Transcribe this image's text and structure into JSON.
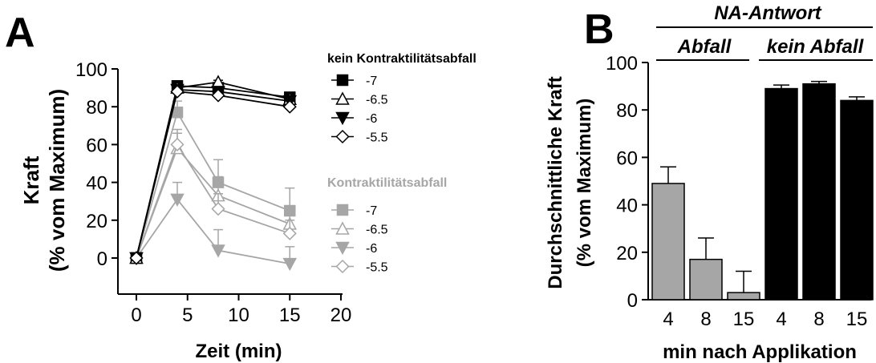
{
  "panels": {
    "a_label": "A",
    "b_label": "B"
  },
  "chart_data": [
    {
      "type": "line",
      "panel": "A",
      "xlabel": "Zeit (min)",
      "ylabel": [
        "Kraft",
        "(% vom Maximum)"
      ],
      "xlim": [
        0,
        20
      ],
      "ylim": [
        0,
        100
      ],
      "xticks": [
        0,
        5,
        10,
        15,
        20
      ],
      "yticks": [
        0,
        20,
        40,
        60,
        80,
        100
      ],
      "x": [
        0,
        4,
        8,
        15
      ],
      "groups": [
        {
          "title": "kein Kontraktilitätsabfall",
          "color": "#000000",
          "series": [
            {
              "name": "-7",
              "marker": "square-filled",
              "values": [
                0,
                91,
                90,
                85
              ],
              "err": [
                0,
                1,
                1,
                1
              ]
            },
            {
              "name": "-6.5",
              "marker": "triangle-up-open",
              "values": [
                0,
                90,
                93,
                84
              ],
              "err": [
                0,
                1,
                1,
                1
              ]
            },
            {
              "name": "-6",
              "marker": "triangle-down-filled",
              "values": [
                0,
                89,
                88,
                83
              ],
              "err": [
                0,
                1,
                1,
                1
              ]
            },
            {
              "name": "-5.5",
              "marker": "diamond-open",
              "values": [
                0,
                88,
                86,
                80
              ],
              "err": [
                0,
                1,
                1,
                1
              ]
            }
          ]
        },
        {
          "title": "Kontraktilitätsabfall",
          "color": "#a6a6a6",
          "series": [
            {
              "name": "-7",
              "marker": "square-filled",
              "values": [
                0,
                77,
                40,
                25
              ],
              "err": [
                0,
                6,
                12,
                12
              ]
            },
            {
              "name": "-6.5",
              "marker": "triangle-up-open",
              "values": [
                0,
                58,
                33,
                18
              ],
              "err": [
                0,
                8,
                10,
                8
              ]
            },
            {
              "name": "-6",
              "marker": "triangle-down-filled",
              "values": [
                0,
                31,
                4,
                -3
              ],
              "err": [
                0,
                9,
                11,
                9
              ]
            },
            {
              "name": "-5.5",
              "marker": "diamond-open",
              "values": [
                0,
                60,
                26,
                13
              ],
              "err": [
                0,
                8,
                8,
                7
              ]
            }
          ]
        }
      ]
    },
    {
      "type": "bar",
      "panel": "B",
      "xlabel": "min nach Applikation",
      "ylabel": [
        "Durchschnittliche Kraft",
        "(% vom Maximum)"
      ],
      "ylim": [
        0,
        100
      ],
      "yticks": [
        0,
        20,
        40,
        60,
        80,
        100
      ],
      "header": "NA-Antwort",
      "groups": [
        {
          "label": "Abfall",
          "color": "#a6a6a6",
          "categories": [
            "4",
            "8",
            "15"
          ],
          "values": [
            49,
            17,
            3
          ],
          "err": [
            7,
            9,
            9
          ]
        },
        {
          "label": "kein Abfall",
          "color": "#000000",
          "categories": [
            "4",
            "8",
            "15"
          ],
          "values": [
            89,
            91,
            84
          ],
          "err": [
            1.5,
            1,
            1.5
          ]
        }
      ]
    }
  ]
}
